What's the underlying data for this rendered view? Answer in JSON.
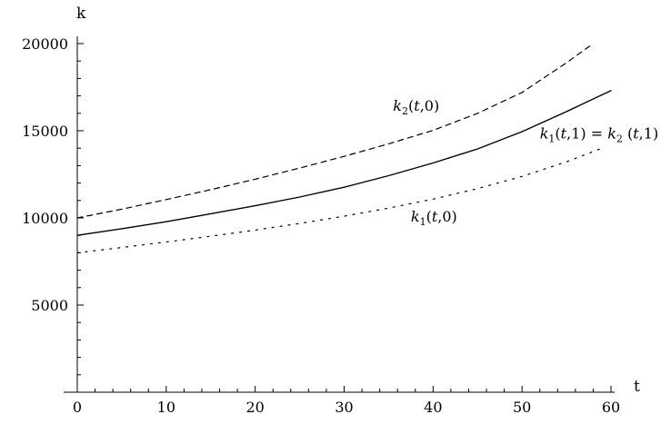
{
  "chart_data": {
    "type": "line",
    "xlabel": "t",
    "ylabel": "k",
    "xlim": [
      0,
      60
    ],
    "ylim": [
      0,
      20000
    ],
    "x_ticks": [
      "0",
      "10",
      "20",
      "30",
      "40",
      "50",
      "60"
    ],
    "y_ticks": [
      "5000",
      "10000",
      "15000",
      "20000"
    ],
    "grid": false,
    "legend": "none",
    "series": [
      {
        "style": "dashed",
        "color": "#000000",
        "x": [
          0,
          5,
          10,
          15,
          20,
          25,
          30,
          35,
          40,
          45,
          50,
          55,
          58
        ],
        "y": [
          10000,
          10500,
          11050,
          11620,
          12220,
          12860,
          13530,
          14250,
          15020,
          16000,
          17200,
          18900,
          20000
        ]
      },
      {
        "style": "solid",
        "color": "#000000",
        "x": [
          0,
          5,
          10,
          15,
          20,
          25,
          30,
          35,
          40,
          45,
          50,
          55,
          60
        ],
        "y": [
          9000,
          9380,
          9780,
          10240,
          10700,
          11200,
          11760,
          12420,
          13150,
          13960,
          14950,
          16100,
          17300
        ]
      },
      {
        "style": "dotted",
        "color": "#000000",
        "x": [
          0,
          5,
          10,
          15,
          20,
          25,
          30,
          35,
          40,
          45,
          50,
          55,
          59
        ],
        "y": [
          8000,
          8300,
          8620,
          8950,
          9300,
          9680,
          10100,
          10560,
          11080,
          11680,
          12380,
          13220,
          14000
        ]
      }
    ],
    "annotations": [
      {
        "base": "k",
        "sub": "2",
        "args": "(t,0)",
        "x": 35.5,
        "y": 16150
      },
      {
        "base": "k",
        "sub": "1",
        "args": "(t,1) = k",
        "sub2": "2",
        "args2": " (t,1)",
        "x": 52,
        "y": 14550
      },
      {
        "base": "k",
        "sub": "1",
        "args": "(t,0)",
        "x": 37.5,
        "y": 9800
      }
    ]
  }
}
